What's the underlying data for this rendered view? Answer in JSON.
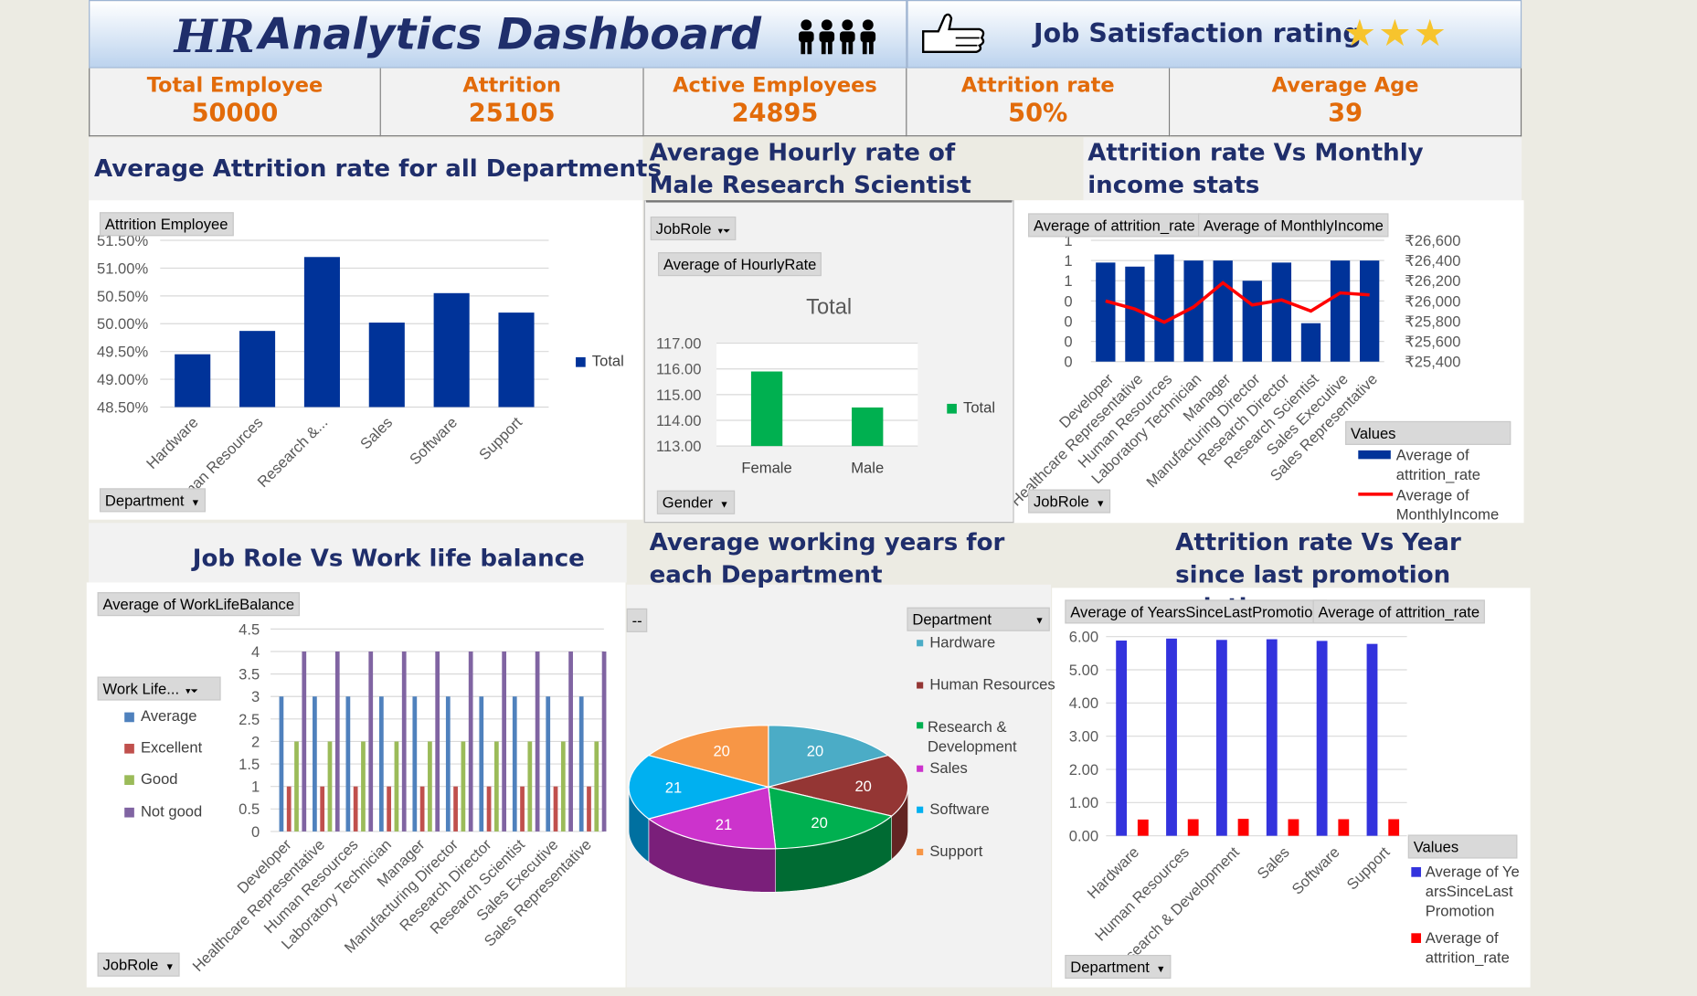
{
  "header": {
    "title_hr": "HR",
    "title_rest": "Analytics Dashboard",
    "satisfaction_label": "Job Satisfaction rating",
    "stars": 3
  },
  "kpis": [
    {
      "label": "Total Employee",
      "value": "50000"
    },
    {
      "label": "Attrition",
      "value": "25105"
    },
    {
      "label": "Active Employees",
      "value": "24895"
    },
    {
      "label": "Attrition rate",
      "value": "50%"
    },
    {
      "label": "Average Age",
      "value": "39"
    }
  ],
  "sections": {
    "attr_dept_title": "Average Attrition rate for all Departments",
    "hourly_title": "Average Hourly rate of Male Research Scientist",
    "income_title": "Attrition rate Vs Monthly income stats",
    "wlb_title": "Job Role Vs Work life balance",
    "years_title": "Average working years for each Department",
    "promo_title": "Attrition rate Vs Year since last promotion relation"
  },
  "buttons": {
    "attrition_employee": "Attrition Employee",
    "department": "Department",
    "jobrole": "JobRole",
    "avg_hourly": "Average of HourlyRate",
    "gender": "Gender",
    "avg_attr_rate": "Average of attrition_rate",
    "avg_monthly": "Average of MonthlyIncome",
    "avg_wlb": "Average of WorkLifeBalance",
    "work_life": "Work Life...",
    "dash": "--",
    "avg_years_promo": "Average of YearsSinceLastPromotion"
  },
  "chart_data": [
    {
      "id": "attrition_by_department",
      "type": "bar",
      "categories": [
        "Hardware",
        "Human Resources",
        "Research &...",
        "Sales",
        "Software",
        "Support"
      ],
      "series": [
        {
          "name": "Total",
          "values": [
            49.45,
            49.87,
            51.2,
            50.02,
            50.55,
            50.2
          ],
          "color": "#003399"
        }
      ],
      "ylim": [
        48.5,
        51.5
      ],
      "yticks": [
        "48.50%",
        "49.00%",
        "49.50%",
        "50.00%",
        "50.50%",
        "51.00%",
        "51.50%"
      ],
      "legend": "right"
    },
    {
      "id": "hourly_rate_by_gender",
      "type": "bar",
      "title": "Total",
      "categories": [
        "Female",
        "Male"
      ],
      "series": [
        {
          "name": "Total",
          "values": [
            115.9,
            114.5
          ],
          "color": "#00b050"
        }
      ],
      "ylim": [
        113,
        117
      ],
      "yticks": [
        "113.00",
        "114.00",
        "115.00",
        "116.00",
        "117.00"
      ],
      "legend": "right"
    },
    {
      "id": "attrition_vs_income",
      "type": "bar",
      "categories": [
        "Developer",
        "Healthcare Representative",
        "Human Resources",
        "Laboratory Technician",
        "Manager",
        "Manufacturing Director",
        "Research Director",
        "Research Scientist",
        "Sales Executive",
        "Sales Representative"
      ],
      "series": [
        {
          "name": "Average of attrition_rate",
          "values": [
            0.49,
            0.47,
            0.53,
            0.5,
            0.5,
            0.4,
            0.49,
            0.19,
            0.5,
            0.5
          ],
          "color": "#003399"
        },
        {
          "name": "Average of MonthlyIncome",
          "values": [
            26000,
            25920,
            25790,
            25940,
            26180,
            25960,
            26010,
            25900,
            26080,
            26060
          ],
          "color": "#ff0000",
          "chart_type": "line"
        }
      ],
      "left_ticks": [
        "0",
        "0",
        "0",
        "0",
        "1",
        "1",
        "1"
      ],
      "right_ticks": [
        "₹25,400",
        "₹25,600",
        "₹25,800",
        "₹26,000",
        "₹26,200",
        "₹26,400",
        "₹26,600"
      ],
      "right_ylim": [
        25400,
        26600
      ],
      "legend_title": "Values",
      "legend": "bottom-right"
    },
    {
      "id": "worklife_by_jobrole",
      "type": "bar",
      "categories": [
        "Developer",
        "Healthcare Representative",
        "Human Resources",
        "Laboratory Technician",
        "Manager",
        "Manufacturing Director",
        "Research Director",
        "Research Scientist",
        "Sales Executive",
        "Sales Representative"
      ],
      "series": [
        {
          "name": "Average",
          "values": [
            3,
            3,
            3,
            3,
            3,
            3,
            3,
            3,
            3,
            3
          ],
          "color": "#4f81bd"
        },
        {
          "name": "Excellent",
          "values": [
            1,
            1,
            1,
            1,
            1,
            1,
            1,
            1,
            1,
            1
          ],
          "color": "#c0504d"
        },
        {
          "name": "Good",
          "values": [
            2,
            2,
            2,
            2,
            2,
            2,
            2,
            2,
            2,
            2
          ],
          "color": "#9bbb59"
        },
        {
          "name": "Not good",
          "values": [
            4,
            4,
            4,
            4,
            4,
            4,
            4,
            4,
            4,
            4
          ],
          "color": "#8064a2"
        }
      ],
      "ylim": [
        0,
        4.5
      ],
      "yticks": [
        "0",
        "0.5",
        "1",
        "1.5",
        "2",
        "2.5",
        "3",
        "3.5",
        "4",
        "4.5"
      ],
      "legend": "left"
    },
    {
      "id": "working_years_by_department",
      "type": "pie",
      "categories": [
        "Hardware",
        "Human Resources",
        "Research & Development",
        "Sales",
        "Software",
        "Support"
      ],
      "values": [
        20,
        20,
        20,
        21,
        21,
        20
      ],
      "colors": [
        "#4bacc6",
        "#943634",
        "#00b050",
        "#cc33cc",
        "#00b0f0",
        "#f79646"
      ],
      "legend_title": "Department",
      "legend": "right"
    },
    {
      "id": "promotion_vs_attrition",
      "type": "bar",
      "categories": [
        "Hardware",
        "Human Resources",
        "Research & Development",
        "Sales",
        "Software",
        "Support"
      ],
      "series": [
        {
          "name": "Average of YearsSinceLastPromotion",
          "values": [
            5.88,
            5.94,
            5.9,
            5.92,
            5.87,
            5.78
          ],
          "color": "#3333dd"
        },
        {
          "name": "Average of attrition_rate",
          "values": [
            0.49,
            0.5,
            0.51,
            0.5,
            0.5,
            0.5
          ],
          "color": "#ff0000"
        }
      ],
      "ylim": [
        0,
        6
      ],
      "yticks": [
        "0.00",
        "1.00",
        "2.00",
        "3.00",
        "4.00",
        "5.00",
        "6.00"
      ],
      "legend_title": "Values",
      "legend": "bottom-right"
    }
  ]
}
